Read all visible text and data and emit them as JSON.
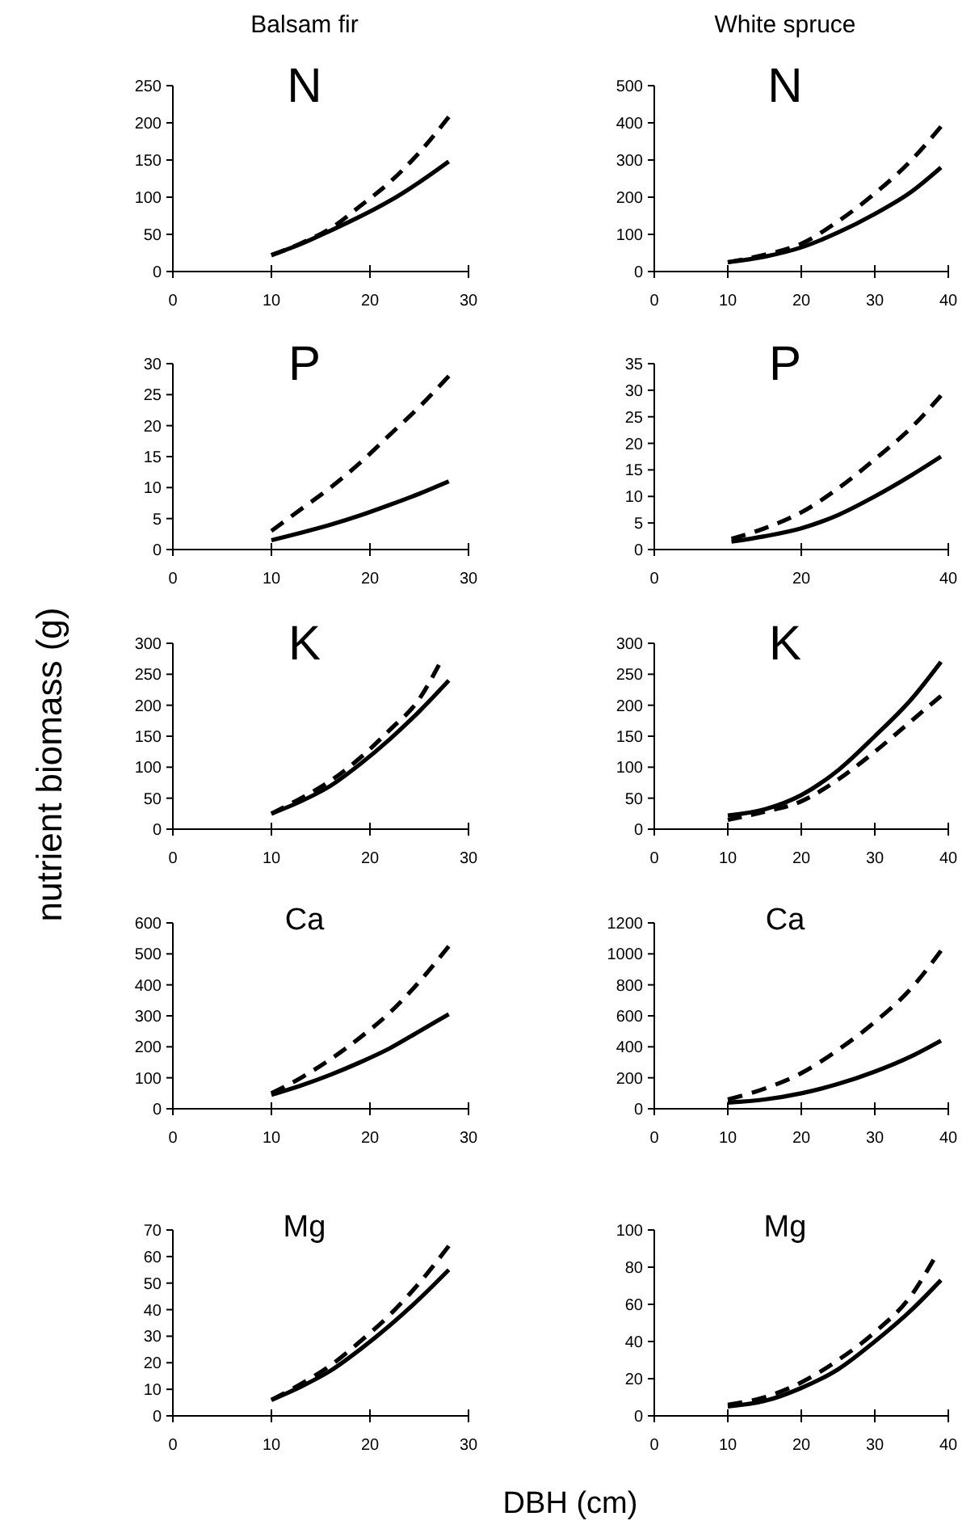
{
  "chart_data": [
    {
      "type": "line",
      "title": "N",
      "annotations": [
        "Balsam fir"
      ],
      "xlim": [
        0,
        30
      ],
      "xticks": [
        0,
        10,
        20,
        30
      ],
      "ylim": [
        0,
        250
      ],
      "yticks": [
        0,
        50,
        100,
        150,
        200,
        250
      ],
      "x": [
        10,
        13,
        16,
        19,
        22,
        25,
        28
      ],
      "series": [
        {
          "color": "#000000",
          "line_style": "solid",
          "values": [
            22,
            37,
            55,
            74,
            95,
            120,
            148
          ]
        },
        {
          "color": "#000000",
          "line_style": "dashed",
          "values": [
            22,
            38,
            58,
            88,
            120,
            160,
            208
          ]
        }
      ]
    },
    {
      "type": "line",
      "title": "N",
      "annotations": [
        "White spruce"
      ],
      "xlim": [
        0,
        40
      ],
      "xticks": [
        0,
        10,
        20,
        30,
        40
      ],
      "ylim": [
        0,
        500
      ],
      "yticks": [
        0,
        100,
        200,
        300,
        400,
        500
      ],
      "x": [
        10,
        15,
        20,
        25,
        30,
        35,
        39
      ],
      "series": [
        {
          "color": "#000000",
          "line_style": "solid",
          "values": [
            25,
            40,
            65,
            105,
            155,
            215,
            280
          ]
        },
        {
          "color": "#000000",
          "line_style": "dashed",
          "values": [
            25,
            45,
            75,
            135,
            210,
            300,
            390
          ]
        }
      ]
    },
    {
      "type": "line",
      "title": "P",
      "xlim": [
        0,
        30
      ],
      "xticks": [
        0,
        10,
        20,
        30
      ],
      "ylim": [
        0,
        30
      ],
      "yticks": [
        0,
        5,
        10,
        15,
        20,
        25,
        30
      ],
      "x": [
        10,
        13,
        16,
        19,
        22,
        25,
        28
      ],
      "series": [
        {
          "color": "#000000",
          "line_style": "solid",
          "values": [
            1.5,
            2.7,
            4,
            5.5,
            7.2,
            9,
            11
          ]
        },
        {
          "color": "#000000",
          "line_style": "dashed",
          "values": [
            3,
            6.5,
            10,
            14,
            18.5,
            23,
            28
          ]
        }
      ]
    },
    {
      "type": "line",
      "title": "P",
      "xlim": [
        0,
        40
      ],
      "xticks": [
        0,
        20,
        40
      ],
      "ylim": [
        0,
        35
      ],
      "yticks": [
        0,
        5,
        10,
        15,
        20,
        25,
        30,
        35
      ],
      "x": [
        10.5,
        15,
        20,
        25,
        30,
        35,
        39
      ],
      "series": [
        {
          "color": "#000000",
          "line_style": "solid",
          "values": [
            1.5,
            2.5,
            4,
            6.5,
            10,
            14,
            17.5
          ]
        },
        {
          "color": "#000000",
          "line_style": "dashed",
          "values": [
            2,
            4,
            7,
            11.5,
            17,
            23,
            29
          ]
        }
      ]
    },
    {
      "type": "line",
      "title": "K",
      "ylabel": "nutrient biomass (g)",
      "xlim": [
        0,
        30
      ],
      "xticks": [
        0,
        10,
        20,
        30
      ],
      "ylim": [
        0,
        300
      ],
      "yticks": [
        0,
        50,
        100,
        150,
        200,
        250,
        300
      ],
      "series": [
        {
          "color": "#000000",
          "line_style": "solid",
          "x": [
            10,
            13,
            16,
            19,
            22,
            25,
            28
          ],
          "values": [
            25,
            45,
            70,
            105,
            145,
            190,
            240
          ]
        },
        {
          "color": "#000000",
          "line_style": "dashed",
          "x": [
            10,
            13,
            16,
            19,
            22,
            25,
            27
          ],
          "values": [
            25,
            50,
            78,
            115,
            160,
            210,
            265
          ]
        }
      ]
    },
    {
      "type": "line",
      "title": "K",
      "xlim": [
        0,
        40
      ],
      "xticks": [
        0,
        10,
        20,
        30,
        40
      ],
      "ylim": [
        0,
        300
      ],
      "yticks": [
        0,
        50,
        100,
        150,
        200,
        250,
        300
      ],
      "x": [
        10,
        15,
        20,
        25,
        30,
        35,
        39
      ],
      "series": [
        {
          "color": "#000000",
          "line_style": "solid",
          "values": [
            22,
            32,
            55,
            95,
            150,
            210,
            270
          ]
        },
        {
          "color": "#000000",
          "line_style": "dashed",
          "values": [
            15,
            28,
            45,
            80,
            125,
            175,
            215
          ]
        }
      ]
    },
    {
      "type": "line",
      "title": "Ca",
      "xlim": [
        0,
        30
      ],
      "xticks": [
        0,
        10,
        20,
        30
      ],
      "ylim": [
        0,
        600
      ],
      "yticks": [
        0,
        100,
        200,
        300,
        400,
        500,
        600
      ],
      "x": [
        10,
        13,
        16,
        19,
        22,
        25,
        28
      ],
      "series": [
        {
          "color": "#000000",
          "line_style": "solid",
          "values": [
            45,
            75,
            110,
            150,
            195,
            250,
            305
          ]
        },
        {
          "color": "#000000",
          "line_style": "dashed",
          "values": [
            50,
            100,
            160,
            230,
            310,
            410,
            525
          ]
        }
      ]
    },
    {
      "type": "line",
      "title": "Ca",
      "xlim": [
        0,
        40
      ],
      "xticks": [
        0,
        10,
        20,
        30,
        40
      ],
      "ylim": [
        0,
        1200
      ],
      "yticks": [
        0,
        200,
        400,
        600,
        800,
        1000,
        1200
      ],
      "x": [
        10,
        15,
        20,
        25,
        30,
        35,
        39
      ],
      "series": [
        {
          "color": "#000000",
          "line_style": "solid",
          "values": [
            40,
            60,
            100,
            160,
            240,
            340,
            440
          ]
        },
        {
          "color": "#000000",
          "line_style": "dashed",
          "values": [
            60,
            130,
            230,
            380,
            560,
            780,
            1020
          ]
        }
      ]
    },
    {
      "type": "line",
      "title": "Mg",
      "xlabel": "DBH (cm)",
      "xlim": [
        0,
        30
      ],
      "xticks": [
        0,
        10,
        20,
        30
      ],
      "ylim": [
        0,
        70
      ],
      "yticks": [
        0,
        10,
        20,
        30,
        40,
        50,
        60,
        70
      ],
      "x": [
        10,
        13,
        16,
        19,
        22,
        25,
        28
      ],
      "series": [
        {
          "color": "#000000",
          "line_style": "solid",
          "values": [
            6,
            11,
            17,
            25,
            34,
            44,
            55
          ]
        },
        {
          "color": "#000000",
          "line_style": "dashed",
          "values": [
            6,
            12,
            19,
            28,
            38,
            50,
            64
          ]
        }
      ]
    },
    {
      "type": "line",
      "title": "Mg",
      "xlim": [
        0,
        40
      ],
      "xticks": [
        0,
        10,
        20,
        30,
        40
      ],
      "ylim": [
        0,
        100
      ],
      "yticks": [
        0,
        20,
        40,
        60,
        80,
        100
      ],
      "series": [
        {
          "color": "#000000",
          "line_style": "solid",
          "x": [
            10,
            15,
            20,
            25,
            30,
            35,
            39
          ],
          "values": [
            5,
            8,
            15,
            25,
            40,
            57,
            73
          ]
        },
        {
          "color": "#000000",
          "line_style": "dashed",
          "x": [
            10,
            15,
            20,
            25,
            30,
            35,
            38
          ],
          "values": [
            6,
            10,
            18,
            30,
            45,
            65,
            84
          ]
        }
      ]
    }
  ]
}
